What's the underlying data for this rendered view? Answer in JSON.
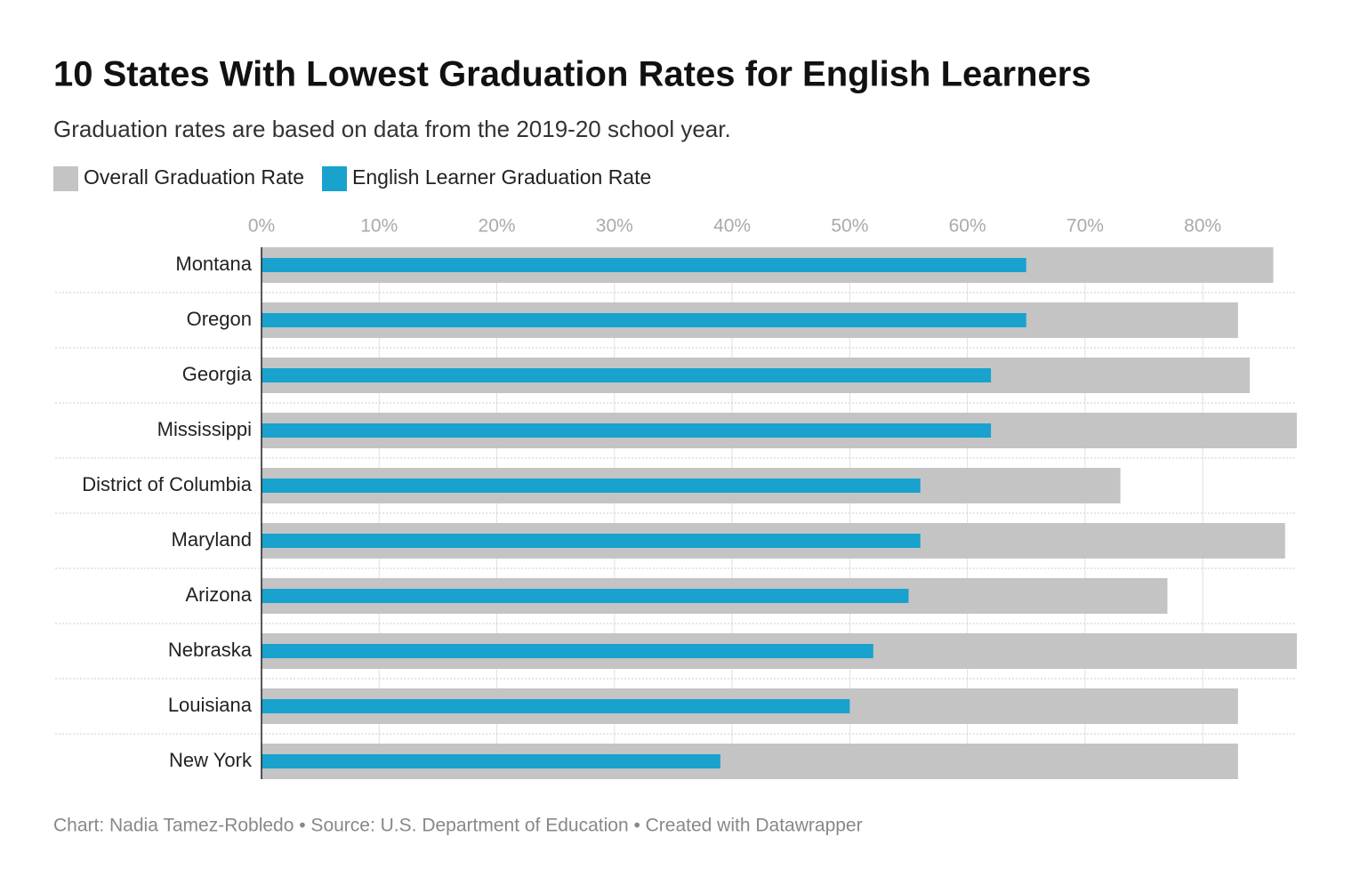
{
  "chart_data": {
    "type": "bar",
    "orientation": "horizontal",
    "title": "10 States With Lowest Graduation Rates for English Learners",
    "subtitle": "Graduation rates are based on data from the 2019-20 school year.",
    "footer": "Chart: Nadia Tamez-Robledo • Source: U.S. Department of Education • Created with Datawrapper",
    "categories": [
      "Montana",
      "Oregon",
      "Georgia",
      "Mississippi",
      "District of Columbia",
      "Maryland",
      "Arizona",
      "Nebraska",
      "Louisiana",
      "New York"
    ],
    "series": [
      {
        "name": "Overall Graduation Rate",
        "color": "#c4c4c4",
        "values": [
          86,
          83,
          84,
          88,
          73,
          87,
          77,
          88,
          83,
          83
        ]
      },
      {
        "name": "English Learner Graduation Rate",
        "color": "#19a2ce",
        "values": [
          65,
          65,
          62,
          62,
          56,
          56,
          55,
          52,
          50,
          39
        ]
      }
    ],
    "xlim": [
      0,
      88
    ],
    "xticks": [
      {
        "value": 0,
        "label": "0%"
      },
      {
        "value": 10,
        "label": "10%"
      },
      {
        "value": 20,
        "label": "20%"
      },
      {
        "value": 30,
        "label": "30%"
      },
      {
        "value": 40,
        "label": "40%"
      },
      {
        "value": 50,
        "label": "50%"
      },
      {
        "value": 60,
        "label": "60%"
      },
      {
        "value": 70,
        "label": "70%"
      },
      {
        "value": 80,
        "label": "80%"
      }
    ],
    "grid": true
  }
}
